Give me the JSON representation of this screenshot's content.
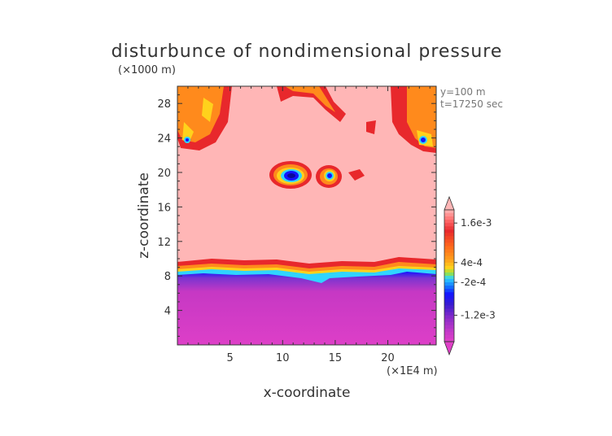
{
  "chart_data": {
    "type": "heatmap",
    "title": "disturbunce of nondimensional pressure",
    "ylabel": "z-coordinate",
    "xlabel": "x-coordinate",
    "y_unit": "(×1000 m)",
    "x_unit": "(×1E4 m)",
    "annotations": [
      "y=100 m",
      "t=17250 sec"
    ],
    "xlim": [
      0,
      24.6
    ],
    "ylim": [
      0,
      30
    ],
    "x_ticks": [
      "5",
      "10",
      "15",
      "20"
    ],
    "x_tick_values": [
      5,
      10,
      15,
      20
    ],
    "y_ticks": [
      "4",
      "8",
      "12",
      "16",
      "20",
      "24",
      "28"
    ],
    "y_tick_values": [
      4,
      8,
      12,
      16,
      20,
      24,
      28
    ],
    "colorbar": {
      "labels": [
        "1.6e-3",
        "4e-4",
        "-2e-4",
        "-1.2e-3"
      ],
      "label_values": [
        0.0016,
        0.0004,
        -0.0002,
        -0.0012
      ],
      "range": [
        -0.002,
        0.002
      ],
      "extend": "both"
    },
    "colors": {
      "background_field": "#ffb6b6",
      "low_layer": "#e040c8",
      "low_layer_dark": "#a030c0",
      "ring_outer": "#e8282c",
      "ring_mid": "#ff8a1c",
      "ring_inner": "#ffd21c",
      "ring_cyan": "#30d4ff",
      "ring_blue": "#1414ff"
    }
  }
}
